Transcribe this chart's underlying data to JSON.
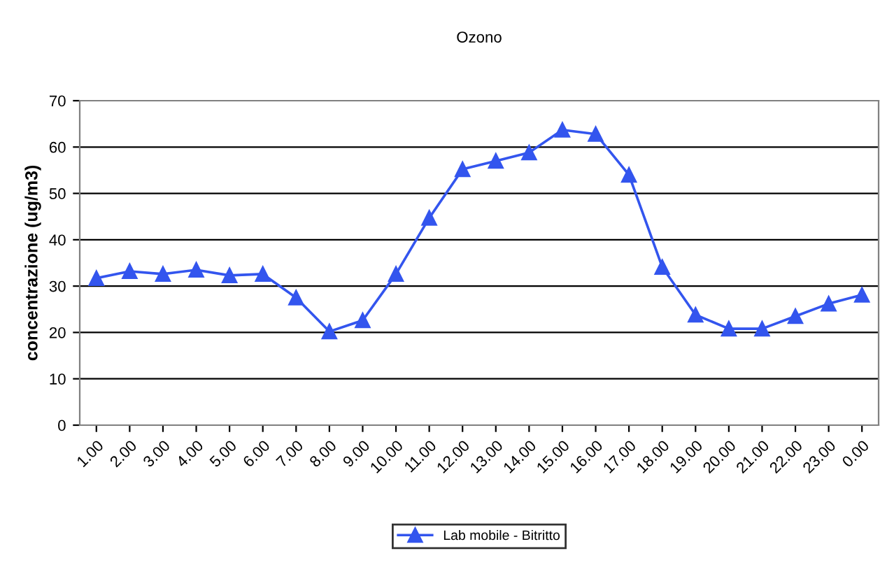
{
  "chart_data": {
    "type": "line",
    "title": "Ozono",
    "ylabel": "concentrazione (ug/m3)",
    "categories": [
      "1.00",
      "2.00",
      "3.00",
      "4.00",
      "5.00",
      "6.00",
      "7.00",
      "8.00",
      "9.00",
      "10.00",
      "11.00",
      "12.00",
      "13.00",
      "14.00",
      "15.00",
      "16.00",
      "17.00",
      "18.00",
      "19.00",
      "20.00",
      "21.00",
      "22.00",
      "23.00",
      "0.00"
    ],
    "series": [
      {
        "name": "Lab mobile - Bitritto",
        "color": "#3355ee",
        "values": [
          31.7,
          33.2,
          32.6,
          33.5,
          32.3,
          32.6,
          27.5,
          20.2,
          22.6,
          32.6,
          44.7,
          55.2,
          57.0,
          58.8,
          63.7,
          62.8,
          54.0,
          34.1,
          23.8,
          20.8,
          20.8,
          23.5,
          26.2,
          28.1
        ]
      }
    ],
    "ylim": [
      0,
      70
    ],
    "yticks": [
      0,
      10,
      20,
      30,
      40,
      50,
      60,
      70
    ],
    "grid": "y",
    "legend": "bottom",
    "marker": "triangle",
    "line_style": "solid"
  }
}
